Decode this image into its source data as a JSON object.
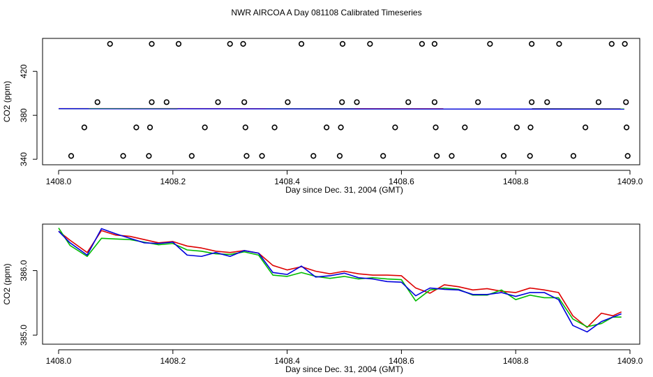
{
  "title": "NWR AIRCOA A  Day 081108  Calibrated Timeseries",
  "colors": {
    "axis": "#000000",
    "series1": "#dd0000",
    "series2": "#00bb00",
    "series3": "#0000dd"
  },
  "chart_data": [
    {
      "type": "scatter",
      "xlabel": "Day since Dec. 31, 2004 (GMT)",
      "ylabel": "CO2 (ppm)",
      "xlim": [
        1408.0,
        1409.0
      ],
      "ylim": [
        335,
        450
      ],
      "xticks": [
        1408.0,
        1408.2,
        1408.4,
        1408.6,
        1408.8,
        1409.0
      ],
      "xtick_labels": [
        "1408.0",
        "1408.2",
        "1408.4",
        "1408.6",
        "1408.8",
        "1409.0"
      ],
      "yticks": [
        340,
        380,
        420
      ],
      "ytick_labels": [
        "340",
        "380",
        "420"
      ],
      "grid": false,
      "points": [
        {
          "x": 1408.09,
          "y": 445
        },
        {
          "x": 1408.163,
          "y": 445
        },
        {
          "x": 1408.21,
          "y": 445
        },
        {
          "x": 1408.3,
          "y": 445
        },
        {
          "x": 1408.323,
          "y": 445
        },
        {
          "x": 1408.425,
          "y": 445
        },
        {
          "x": 1408.497,
          "y": 445
        },
        {
          "x": 1408.545,
          "y": 445
        },
        {
          "x": 1408.636,
          "y": 445
        },
        {
          "x": 1408.658,
          "y": 445
        },
        {
          "x": 1408.755,
          "y": 445
        },
        {
          "x": 1408.828,
          "y": 445
        },
        {
          "x": 1408.876,
          "y": 445
        },
        {
          "x": 1408.968,
          "y": 445
        },
        {
          "x": 1408.991,
          "y": 445
        },
        {
          "x": 1408.068,
          "y": 392
        },
        {
          "x": 1408.163,
          "y": 392
        },
        {
          "x": 1408.189,
          "y": 392
        },
        {
          "x": 1408.279,
          "y": 392
        },
        {
          "x": 1408.325,
          "y": 392
        },
        {
          "x": 1408.401,
          "y": 392
        },
        {
          "x": 1408.496,
          "y": 392
        },
        {
          "x": 1408.522,
          "y": 392
        },
        {
          "x": 1408.612,
          "y": 392
        },
        {
          "x": 1408.658,
          "y": 392
        },
        {
          "x": 1408.734,
          "y": 392
        },
        {
          "x": 1408.828,
          "y": 392
        },
        {
          "x": 1408.855,
          "y": 392
        },
        {
          "x": 1408.945,
          "y": 392
        },
        {
          "x": 1408.993,
          "y": 392
        },
        {
          "x": 1408.045,
          "y": 369
        },
        {
          "x": 1408.136,
          "y": 369
        },
        {
          "x": 1408.16,
          "y": 369
        },
        {
          "x": 1408.256,
          "y": 369
        },
        {
          "x": 1408.327,
          "y": 369
        },
        {
          "x": 1408.378,
          "y": 369
        },
        {
          "x": 1408.469,
          "y": 369
        },
        {
          "x": 1408.494,
          "y": 369
        },
        {
          "x": 1408.589,
          "y": 369
        },
        {
          "x": 1408.66,
          "y": 369
        },
        {
          "x": 1408.711,
          "y": 369
        },
        {
          "x": 1408.802,
          "y": 369
        },
        {
          "x": 1408.826,
          "y": 369
        },
        {
          "x": 1408.922,
          "y": 369
        },
        {
          "x": 1408.994,
          "y": 369
        },
        {
          "x": 1408.022,
          "y": 343
        },
        {
          "x": 1408.113,
          "y": 343
        },
        {
          "x": 1408.158,
          "y": 343
        },
        {
          "x": 1408.233,
          "y": 343
        },
        {
          "x": 1408.329,
          "y": 343
        },
        {
          "x": 1408.356,
          "y": 343
        },
        {
          "x": 1408.446,
          "y": 343
        },
        {
          "x": 1408.492,
          "y": 343
        },
        {
          "x": 1408.568,
          "y": 343
        },
        {
          "x": 1408.662,
          "y": 343
        },
        {
          "x": 1408.688,
          "y": 343
        },
        {
          "x": 1408.779,
          "y": 343
        },
        {
          "x": 1408.825,
          "y": 343
        },
        {
          "x": 1408.901,
          "y": 343
        },
        {
          "x": 1408.996,
          "y": 343
        }
      ],
      "series": [
        {
          "values_from": "x",
          "x": [
            1408.0,
            1408.99
          ],
          "y": [
            386.1,
            385.9
          ]
        },
        {
          "values_from": "x",
          "x": [
            1408.0,
            1408.99
          ],
          "y": [
            386.0,
            385.8
          ]
        },
        {
          "values_from": "x",
          "x": [
            1408.0,
            1408.99
          ],
          "y": [
            386.0,
            385.6
          ]
        }
      ]
    },
    {
      "type": "line",
      "xlabel": "Day since Dec. 31, 2004 (GMT)",
      "ylabel": "CO2 (ppm)",
      "xlim": [
        1408.0,
        1409.0
      ],
      "ylim": [
        384.86,
        386.72
      ],
      "xticks": [
        1408.0,
        1408.2,
        1408.4,
        1408.6,
        1408.8,
        1409.0
      ],
      "xtick_labels": [
        "1408.0",
        "1408.2",
        "1408.4",
        "1408.6",
        "1408.8",
        "1409.0"
      ],
      "yticks": [
        385.0,
        386.0
      ],
      "ytick_labels": [
        "385.0",
        "386.0"
      ],
      "grid": false,
      "series": [
        {
          "x": [
            1408.0,
            1408.02,
            1408.05,
            1408.075,
            1408.1,
            1408.125,
            1408.15,
            1408.175,
            1408.2,
            1408.225,
            1408.25,
            1408.275,
            1408.3,
            1408.325,
            1408.35,
            1408.375,
            1408.4,
            1408.425,
            1408.45,
            1408.475,
            1408.5,
            1408.525,
            1408.55,
            1408.575,
            1408.6,
            1408.625,
            1408.65,
            1408.675,
            1408.7,
            1408.725,
            1408.75,
            1408.775,
            1408.8,
            1408.825,
            1408.85,
            1408.875,
            1408.9,
            1408.925,
            1408.95,
            1408.97,
            1408.985
          ],
          "y": [
            386.61,
            386.47,
            386.28,
            386.62,
            386.55,
            386.53,
            386.48,
            386.43,
            386.45,
            386.38,
            386.35,
            386.3,
            386.28,
            386.31,
            386.27,
            386.08,
            386.01,
            386.06,
            385.99,
            385.95,
            385.99,
            385.95,
            385.93,
            385.93,
            385.92,
            385.73,
            385.65,
            385.78,
            385.75,
            385.7,
            385.72,
            385.68,
            385.66,
            385.73,
            385.7,
            385.66,
            385.3,
            385.12,
            385.34,
            385.3,
            385.36
          ]
        },
        {
          "x": [
            1408.0,
            1408.02,
            1408.05,
            1408.075,
            1408.1,
            1408.125,
            1408.15,
            1408.175,
            1408.2,
            1408.225,
            1408.25,
            1408.275,
            1408.3,
            1408.325,
            1408.35,
            1408.375,
            1408.4,
            1408.425,
            1408.45,
            1408.475,
            1408.5,
            1408.525,
            1408.55,
            1408.575,
            1408.6,
            1408.625,
            1408.65,
            1408.675,
            1408.7,
            1408.725,
            1408.75,
            1408.775,
            1408.8,
            1408.825,
            1408.85,
            1408.875,
            1408.9,
            1408.925,
            1408.95,
            1408.97,
            1408.985
          ],
          "y": [
            386.66,
            386.39,
            386.22,
            386.5,
            386.49,
            386.48,
            386.44,
            386.4,
            386.42,
            386.32,
            386.3,
            386.26,
            386.25,
            386.29,
            386.24,
            385.93,
            385.91,
            385.97,
            385.91,
            385.88,
            385.91,
            385.87,
            385.89,
            385.87,
            385.86,
            385.53,
            385.7,
            385.73,
            385.71,
            385.62,
            385.62,
            385.7,
            385.55,
            385.62,
            385.58,
            385.58,
            385.25,
            385.13,
            385.18,
            385.28,
            385.28
          ]
        },
        {
          "x": [
            1408.0,
            1408.02,
            1408.05,
            1408.075,
            1408.1,
            1408.125,
            1408.15,
            1408.175,
            1408.2,
            1408.225,
            1408.25,
            1408.275,
            1408.3,
            1408.325,
            1408.35,
            1408.375,
            1408.4,
            1408.425,
            1408.45,
            1408.475,
            1408.5,
            1408.525,
            1408.55,
            1408.575,
            1408.6,
            1408.625,
            1408.65,
            1408.675,
            1408.7,
            1408.725,
            1408.75,
            1408.775,
            1408.8,
            1408.825,
            1408.85,
            1408.875,
            1408.9,
            1408.925,
            1408.95,
            1408.97,
            1408.985
          ],
          "y": [
            386.61,
            386.43,
            386.24,
            386.65,
            386.57,
            386.5,
            386.43,
            386.42,
            386.44,
            386.24,
            386.22,
            386.28,
            386.22,
            386.31,
            386.27,
            385.97,
            385.94,
            386.07,
            385.9,
            385.92,
            385.96,
            385.89,
            385.87,
            385.83,
            385.82,
            385.61,
            385.73,
            385.71,
            385.7,
            385.63,
            385.63,
            385.66,
            385.6,
            385.66,
            385.66,
            385.55,
            385.15,
            385.05,
            385.21,
            385.28,
            385.33
          ]
        }
      ]
    }
  ]
}
